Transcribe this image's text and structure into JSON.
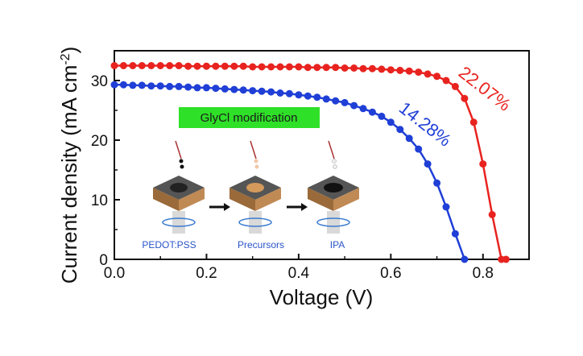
{
  "chart_data": {
    "type": "line",
    "title": "",
    "xlabel": "Voltage (V)",
    "ylabel": "Current density (mA cm⁻²)",
    "xlim": [
      0.0,
      0.9
    ],
    "ylim": [
      0,
      35
    ],
    "xticks": [
      "0.0",
      "0.2",
      "0.4",
      "0.6",
      "0.8"
    ],
    "yticks": [
      "0",
      "10",
      "20",
      "30"
    ],
    "grid": false,
    "legend": "none",
    "series": [
      {
        "label": "22.07%",
        "color": "#e8231f",
        "marker": "circle",
        "x": [
          0.0,
          0.02,
          0.04,
          0.06,
          0.08,
          0.1,
          0.12,
          0.14,
          0.16,
          0.18,
          0.2,
          0.22,
          0.24,
          0.26,
          0.28,
          0.3,
          0.32,
          0.34,
          0.36,
          0.38,
          0.4,
          0.42,
          0.44,
          0.46,
          0.48,
          0.5,
          0.52,
          0.54,
          0.56,
          0.58,
          0.6,
          0.62,
          0.64,
          0.66,
          0.68,
          0.7,
          0.72,
          0.74,
          0.76,
          0.78,
          0.8,
          0.82,
          0.84,
          0.85
        ],
        "y": [
          32.5,
          32.5,
          32.5,
          32.5,
          32.5,
          32.5,
          32.5,
          32.5,
          32.4,
          32.4,
          32.4,
          32.4,
          32.4,
          32.4,
          32.4,
          32.3,
          32.3,
          32.3,
          32.3,
          32.3,
          32.3,
          32.2,
          32.2,
          32.2,
          32.2,
          32.1,
          32.1,
          32.0,
          32.0,
          31.9,
          31.8,
          31.7,
          31.6,
          31.4,
          31.1,
          30.7,
          30.0,
          29.0,
          27.0,
          23.0,
          16.0,
          7.5,
          0.0,
          0.0
        ]
      },
      {
        "label": "14.28%",
        "color": "#1f3fd6",
        "marker": "circle",
        "x": [
          0.0,
          0.02,
          0.04,
          0.06,
          0.08,
          0.1,
          0.12,
          0.14,
          0.16,
          0.18,
          0.2,
          0.22,
          0.24,
          0.26,
          0.28,
          0.3,
          0.32,
          0.34,
          0.36,
          0.38,
          0.4,
          0.42,
          0.44,
          0.46,
          0.48,
          0.5,
          0.52,
          0.54,
          0.56,
          0.58,
          0.6,
          0.62,
          0.64,
          0.66,
          0.68,
          0.7,
          0.72,
          0.74,
          0.76
        ],
        "y": [
          29.3,
          29.3,
          29.2,
          29.2,
          29.1,
          29.1,
          29.0,
          29.0,
          28.9,
          28.8,
          28.8,
          28.7,
          28.6,
          28.5,
          28.4,
          28.3,
          28.2,
          28.1,
          27.9,
          27.8,
          27.6,
          27.4,
          27.2,
          26.9,
          26.6,
          26.3,
          25.8,
          25.3,
          24.7,
          24.0,
          23.0,
          21.8,
          20.3,
          18.5,
          16.0,
          12.8,
          8.8,
          4.3,
          0.0
        ]
      }
    ],
    "annotations": [
      {
        "text": "22.07%",
        "color": "#e8231f"
      },
      {
        "text": "14.28%",
        "color": "#1f3fd6"
      }
    ]
  },
  "inset": {
    "title": "GlyCl modification",
    "title_bg": "#2fe028",
    "steps": [
      "PEDOT:PSS",
      "Precursors",
      "IPA"
    ]
  }
}
